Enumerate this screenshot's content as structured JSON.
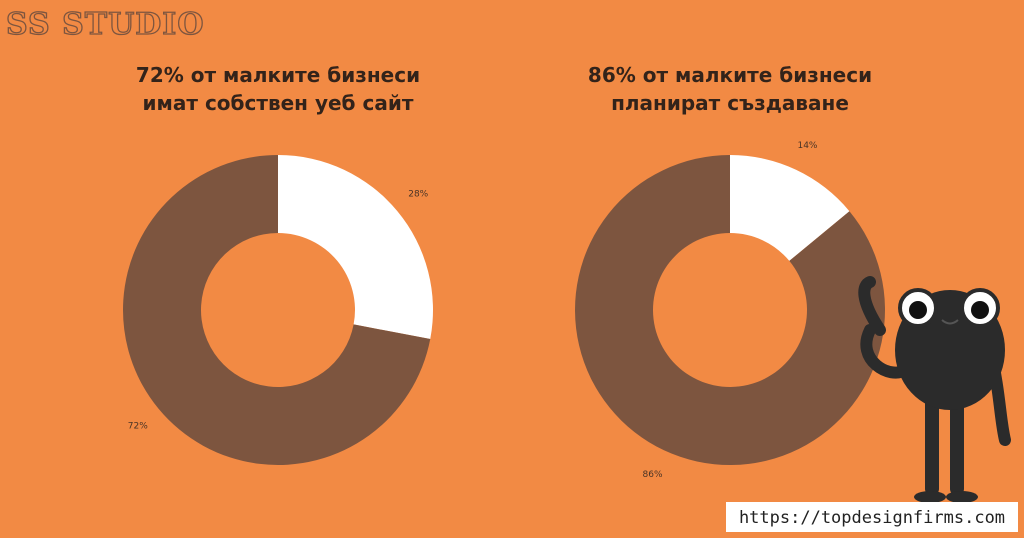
{
  "brand": "SS STUDIO",
  "watermark": "https://topdesignfirms.com",
  "chart_data": [
    {
      "type": "donut",
      "title": [
        "72% от малките бизнеси",
        "имат собствен уеб сайт"
      ],
      "values": [
        28,
        72
      ],
      "value_labels": [
        "28%",
        "72%"
      ],
      "colors": [
        "#ffffff",
        "#7d553f"
      ]
    },
    {
      "type": "donut",
      "title": [
        "86% от малките бизнеси",
        "планират създаване"
      ],
      "values": [
        14,
        86
      ],
      "value_labels": [
        "14%",
        "86%"
      ],
      "colors": [
        "#ffffff",
        "#7d553f"
      ]
    }
  ]
}
